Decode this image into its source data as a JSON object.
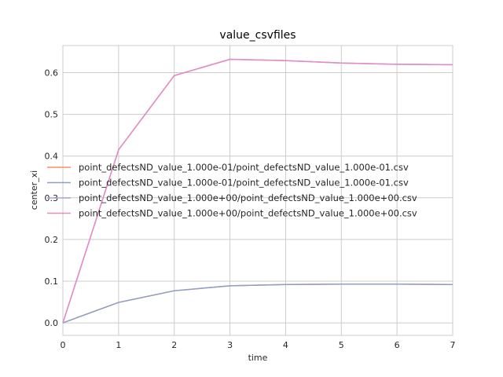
{
  "chart_data": {
    "type": "line",
    "title": "value_csvfiles",
    "xlabel": "time",
    "ylabel": "center_xi",
    "xlim": [
      0,
      7
    ],
    "ylim": [
      -0.03,
      0.665
    ],
    "grid": true,
    "legend_position": "center-left",
    "x_ticks": [
      "0",
      "1",
      "2",
      "3",
      "4",
      "5",
      "6",
      "7"
    ],
    "y_ticks": [
      "0.0",
      "0.1",
      "0.2",
      "0.3",
      "0.4",
      "0.5",
      "0.6"
    ],
    "x": [
      0,
      1,
      2,
      3,
      4,
      5,
      6,
      7
    ],
    "series": [
      {
        "name": "point_defectsND_value_1.000e-01/point_defectsND_value_1.000e-01.csv",
        "color": "#fc8d62",
        "values": [
          0.0,
          0.049,
          0.077,
          0.089,
          0.092,
          0.093,
          0.093,
          0.092
        ]
      },
      {
        "name": "point_defectsND_value_1.000e-01/point_defectsND_value_1.000e-01.csv",
        "color": "#8da0cb",
        "values": [
          0.0,
          0.049,
          0.077,
          0.089,
          0.092,
          0.093,
          0.093,
          0.092
        ]
      },
      {
        "name": "point_defectsND_value_1.000e+00/point_defectsND_value_1.000e+00.csv",
        "color": "#a6a6d6",
        "values": [
          0.0,
          0.415,
          0.593,
          0.632,
          0.629,
          0.623,
          0.62,
          0.619
        ]
      },
      {
        "name": "point_defectsND_value_1.000e+00/point_defectsND_value_1.000e+00.csv",
        "color": "#e78ac3",
        "values": [
          0.0,
          0.415,
          0.593,
          0.632,
          0.629,
          0.623,
          0.62,
          0.619
        ]
      }
    ]
  }
}
